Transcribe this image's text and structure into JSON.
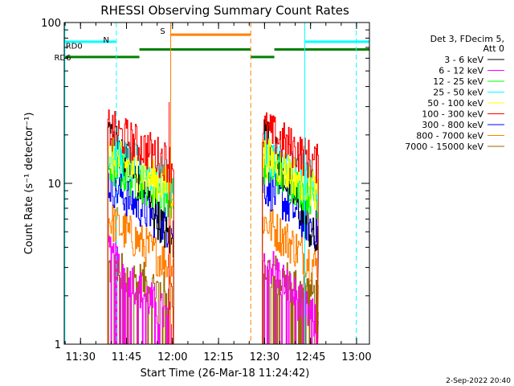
{
  "chart_data": {
    "type": "line",
    "title": "RHESSI Observing Summary Count Rates",
    "xlabel": "Start Time (26-Mar-18 11:24:42)",
    "ylabel": "Count Rate (s⁻¹ detector⁻¹)",
    "ylog": true,
    "ylim": [
      1,
      100
    ],
    "xlim_minutes_after_11_24_42": [
      0,
      99.5
    ],
    "x_ticks": [
      {
        "label": "11:30",
        "t": 5.3
      },
      {
        "label": "11:45",
        "t": 20.3
      },
      {
        "label": "12:00",
        "t": 35.3
      },
      {
        "label": "12:15",
        "t": 50.3
      },
      {
        "label": "12:30",
        "t": 65.3
      },
      {
        "label": "12:45",
        "t": 80.3
      },
      {
        "label": "13:00",
        "t": 95.3
      }
    ],
    "y_ticks": [
      {
        "label": "1",
        "v": 1
      },
      {
        "label": "10",
        "v": 10
      },
      {
        "label": "100",
        "v": 100
      }
    ],
    "legend_title_line1": "Det 3, FDecim 5,",
    "legend_title_line2": "Att 0",
    "legend_position": "right",
    "series": [
      {
        "name": "3 - 6 keV",
        "color": "#000000",
        "level_high": 22,
        "level_low": 4
      },
      {
        "name": "6 - 12 keV",
        "color": "#ff00ff",
        "level_high": 3.6,
        "level_low": 1.3
      },
      {
        "name": "12 - 25 keV",
        "color": "#00ff00",
        "level_high": 13,
        "level_low": 8
      },
      {
        "name": "25 - 50 keV",
        "color": "#00ffff",
        "level_high": 16,
        "level_low": 10
      },
      {
        "name": "50 - 100 keV",
        "color": "#ffff00",
        "level_high": 15,
        "level_low": 9
      },
      {
        "name": "100 - 300 keV",
        "color": "#ff0000",
        "level_high": 22,
        "level_low": 13
      },
      {
        "name": "300 - 800 keV",
        "color": "#0000ff",
        "level_high": 10,
        "level_low": 5
      },
      {
        "name": "800 - 7000 keV",
        "color": "#ff8000",
        "level_high": 6,
        "level_low": 3
      },
      {
        "name": "7000 - 15000 keV",
        "color": "#996600",
        "level_high": 3,
        "level_low": 2
      }
    ],
    "data_segments_minutes": [
      [
        14.2,
        35.6
      ],
      [
        64.6,
        82.6
      ]
    ],
    "flags": [
      {
        "label": "N",
        "color": "#00ffff",
        "y_level": 76,
        "spans": [
          [
            0,
            16.8
          ],
          [
            78.5,
            99.5
          ]
        ]
      },
      {
        "label": "S",
        "color": "#ff8000",
        "y_level": 84,
        "spans": [
          [
            34.7,
            60.8
          ]
        ]
      },
      {
        "label": "RD0",
        "color": "#008000",
        "y_level": 68,
        "spans": [
          [
            24.5,
            60.8
          ],
          [
            68.5,
            99.5
          ]
        ]
      },
      {
        "label": "RD6",
        "color": "#008000",
        "y_level": 61,
        "spans": [
          [
            0,
            24.5
          ],
          [
            60.8,
            68.5
          ]
        ]
      }
    ],
    "vertical_lines": [
      {
        "t": 0.2,
        "color": "#00ffff",
        "style": "solid"
      },
      {
        "t": 17.0,
        "color": "#00ffff",
        "style": "dashed"
      },
      {
        "t": 34.7,
        "color": "#ff8000",
        "style": "solid"
      },
      {
        "t": 60.8,
        "color": "#ff8000",
        "style": "dashed"
      },
      {
        "t": 78.4,
        "color": "#00ffff",
        "style": "solid"
      },
      {
        "t": 95.2,
        "color": "#00ffff",
        "style": "dashed"
      }
    ]
  },
  "footer": {
    "date_stamp": "2-Sep-2022 20:40"
  }
}
